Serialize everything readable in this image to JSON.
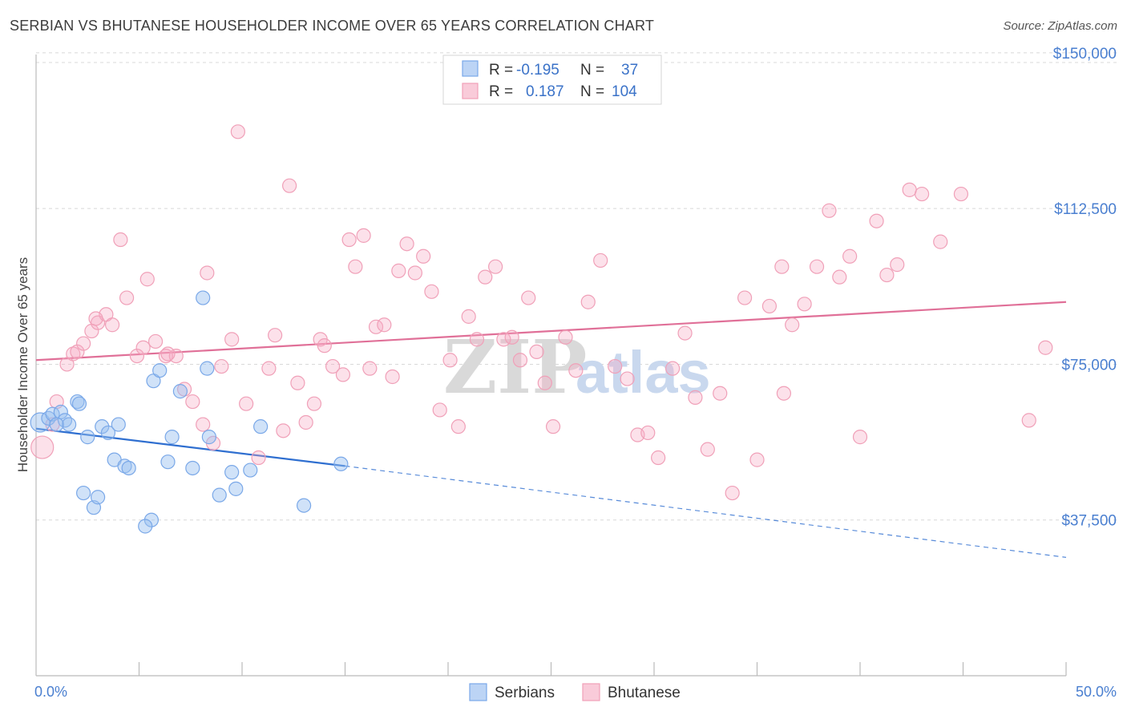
{
  "title": "SERBIAN VS BHUTANESE HOUSEHOLDER INCOME OVER 65 YEARS CORRELATION CHART",
  "source": "Source: ZipAtlas.com",
  "watermark": {
    "zip": "ZIP",
    "atlas": "atlas"
  },
  "legend": {
    "r_label": "R =",
    "n_label": "N =",
    "rows": [
      {
        "series": "Serbians",
        "r": "-0.195",
        "n": "37",
        "color": "#7aa8e8"
      },
      {
        "series": "Bhutanese",
        "r": "0.187",
        "n": "104",
        "color": "#f0a0b8"
      }
    ]
  },
  "chart_data": {
    "type": "scatter",
    "title": "SERBIAN VS BHUTANESE HOUSEHOLDER INCOME OVER 65 YEARS CORRELATION CHART",
    "xlabel": "",
    "ylabel": "Householder Income Over 65 years",
    "xlim": [
      0,
      50
    ],
    "ylim": [
      0,
      155000
    ],
    "x_tick_labels": [
      "0.0%",
      "50.0%"
    ],
    "y_ticks": [
      37500,
      75000,
      112500,
      150000
    ],
    "y_tick_labels": [
      "$37,500",
      "$75,000",
      "$112,500",
      "$150,000"
    ],
    "grid": true,
    "legend_position": "top-center",
    "series": [
      {
        "name": "Serbians",
        "color": "#7aa8e8",
        "line_color": "#2f6fd0",
        "trend": {
          "x0": 0,
          "y0": 59500,
          "x1": 15,
          "y1": 50500,
          "dash_to_x": 50,
          "dash_y": 28500
        },
        "points": [
          [
            0.2,
            61000
          ],
          [
            0.6,
            62000
          ],
          [
            0.8,
            63000
          ],
          [
            1.2,
            63500
          ],
          [
            1.4,
            61500
          ],
          [
            1.6,
            60500
          ],
          [
            2.0,
            66000
          ],
          [
            2.1,
            65500
          ],
          [
            2.5,
            57500
          ],
          [
            3.2,
            60000
          ],
          [
            3.5,
            58500
          ],
          [
            4.0,
            60500
          ],
          [
            3.8,
            52000
          ],
          [
            4.3,
            50500
          ],
          [
            4.5,
            50000
          ],
          [
            5.7,
            71000
          ],
          [
            6.0,
            73500
          ],
          [
            5.6,
            37500
          ],
          [
            6.6,
            57500
          ],
          [
            6.4,
            51500
          ],
          [
            7.6,
            50000
          ],
          [
            7.0,
            68500
          ],
          [
            8.1,
            91000
          ],
          [
            8.4,
            57500
          ],
          [
            8.3,
            74000
          ],
          [
            8.9,
            43500
          ],
          [
            9.5,
            49000
          ],
          [
            9.7,
            45000
          ],
          [
            10.4,
            49500
          ],
          [
            10.9,
            60000
          ],
          [
            13.0,
            41000
          ],
          [
            14.8,
            51000
          ],
          [
            2.3,
            44000
          ],
          [
            2.8,
            40500
          ],
          [
            3.0,
            43000
          ],
          [
            5.3,
            36000
          ],
          [
            1.0,
            60500
          ]
        ]
      },
      {
        "name": "Bhutanese",
        "color": "#f0a0b8",
        "line_color": "#e07098",
        "trend": {
          "x0": 0,
          "y0": 76000,
          "x1": 50,
          "y1": 90000
        },
        "points": [
          [
            0.3,
            55000
          ],
          [
            1.0,
            66000
          ],
          [
            1.5,
            75000
          ],
          [
            1.8,
            77500
          ],
          [
            2.0,
            78000
          ],
          [
            2.3,
            80000
          ],
          [
            2.7,
            83000
          ],
          [
            3.0,
            85000
          ],
          [
            3.4,
            87000
          ],
          [
            3.7,
            84500
          ],
          [
            4.1,
            105000
          ],
          [
            4.4,
            91000
          ],
          [
            4.9,
            77000
          ],
          [
            5.2,
            79000
          ],
          [
            5.4,
            95500
          ],
          [
            5.8,
            80500
          ],
          [
            6.3,
            77000
          ],
          [
            6.8,
            77000
          ],
          [
            7.2,
            69000
          ],
          [
            7.6,
            66000
          ],
          [
            8.1,
            60500
          ],
          [
            8.3,
            97000
          ],
          [
            8.6,
            56000
          ],
          [
            9.0,
            74500
          ],
          [
            9.5,
            81000
          ],
          [
            9.8,
            131000
          ],
          [
            10.2,
            65500
          ],
          [
            10.8,
            52500
          ],
          [
            11.3,
            74000
          ],
          [
            11.6,
            82000
          ],
          [
            12.0,
            59000
          ],
          [
            12.3,
            118000
          ],
          [
            12.7,
            70500
          ],
          [
            13.1,
            61000
          ],
          [
            13.5,
            65500
          ],
          [
            13.8,
            81000
          ],
          [
            14.0,
            79500
          ],
          [
            14.4,
            74500
          ],
          [
            14.9,
            72500
          ],
          [
            15.2,
            105000
          ],
          [
            15.5,
            98500
          ],
          [
            15.9,
            106000
          ],
          [
            16.2,
            74000
          ],
          [
            16.5,
            84000
          ],
          [
            16.9,
            84500
          ],
          [
            17.3,
            72000
          ],
          [
            17.6,
            97500
          ],
          [
            18.0,
            104000
          ],
          [
            18.4,
            97000
          ],
          [
            18.8,
            101000
          ],
          [
            19.2,
            92500
          ],
          [
            19.6,
            64000
          ],
          [
            20.1,
            76000
          ],
          [
            20.5,
            60000
          ],
          [
            21.0,
            86500
          ],
          [
            21.4,
            81000
          ],
          [
            21.8,
            96000
          ],
          [
            22.3,
            98500
          ],
          [
            22.7,
            81000
          ],
          [
            23.1,
            81500
          ],
          [
            23.5,
            76000
          ],
          [
            23.9,
            91000
          ],
          [
            24.3,
            78000
          ],
          [
            24.7,
            70500
          ],
          [
            25.1,
            60000
          ],
          [
            25.7,
            81500
          ],
          [
            26.2,
            73500
          ],
          [
            26.8,
            90000
          ],
          [
            27.4,
            100000
          ],
          [
            28.1,
            74500
          ],
          [
            28.7,
            71500
          ],
          [
            29.2,
            58000
          ],
          [
            29.7,
            58500
          ],
          [
            30.2,
            52500
          ],
          [
            30.9,
            74000
          ],
          [
            31.5,
            82500
          ],
          [
            32.0,
            67000
          ],
          [
            32.6,
            54500
          ],
          [
            33.2,
            68000
          ],
          [
            33.8,
            44000
          ],
          [
            34.4,
            91000
          ],
          [
            35.0,
            52000
          ],
          [
            35.6,
            89000
          ],
          [
            36.2,
            98500
          ],
          [
            36.7,
            84500
          ],
          [
            37.3,
            89500
          ],
          [
            37.9,
            98500
          ],
          [
            38.5,
            112000
          ],
          [
            39.0,
            96000
          ],
          [
            39.5,
            101000
          ],
          [
            40.0,
            57500
          ],
          [
            40.8,
            109500
          ],
          [
            41.3,
            96500
          ],
          [
            41.8,
            99000
          ],
          [
            42.4,
            117000
          ],
          [
            43.0,
            116000
          ],
          [
            43.9,
            104500
          ],
          [
            44.9,
            116000
          ],
          [
            49.0,
            79000
          ],
          [
            48.2,
            61500
          ],
          [
            36.3,
            68000
          ],
          [
            0.8,
            60500
          ],
          [
            2.9,
            86000
          ],
          [
            6.4,
            77500
          ]
        ]
      }
    ]
  },
  "bottom_legend": [
    "Serbians",
    "Bhutanese"
  ]
}
